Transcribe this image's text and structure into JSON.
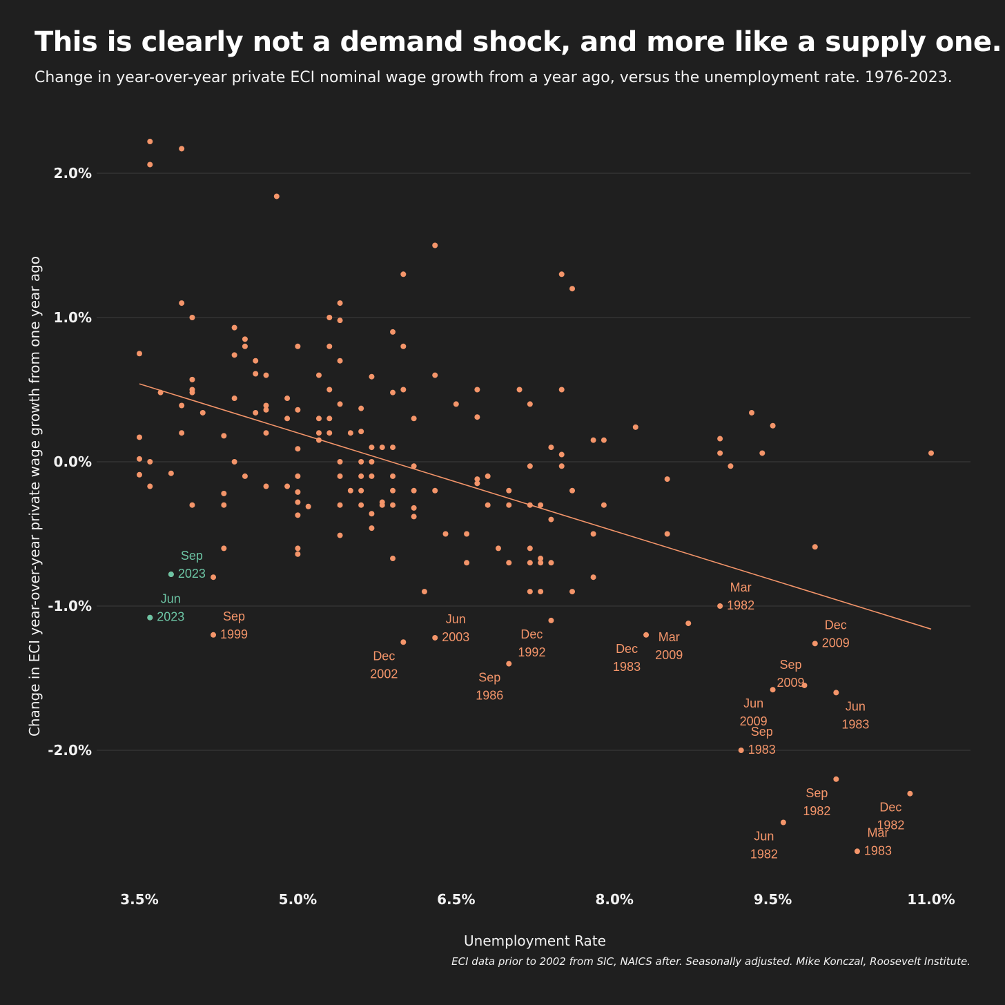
{
  "colors": {
    "background": "#1f1f1f",
    "point": "#f4956a",
    "highlight": "#6cc4a4",
    "trend": "#f4956a",
    "grid": "#3c3c3c",
    "text": "#f2f2f2"
  },
  "chart_data": {
    "type": "scatter",
    "title": "This is clearly not a demand shock, and more like a supply one.",
    "subtitle": "Change in year-over-year private ECI nominal wage growth from a year ago, versus the unemployment rate. 1976-2023.",
    "xlabel": "Unemployment Rate",
    "ylabel": "Change in ECI year-over-year private wage growth from one year ago",
    "caption": "ECI data prior to 2002 from SIC, NAICS after. Seasonally adjusted. Mike Konczal, Roosevelt Institute.",
    "xlim": [
      3.5,
      11.0
    ],
    "ylim": [
      -2.9,
      2.25
    ],
    "x_ticks": [
      3.5,
      5.0,
      6.5,
      8.0,
      9.5,
      11.0
    ],
    "x_tick_labels": [
      "3.5%",
      "5.0%",
      "6.5%",
      "8.0%",
      "9.5%",
      "11.0%"
    ],
    "y_ticks": [
      2.0,
      1.0,
      0.0,
      -1.0,
      -2.0
    ],
    "y_tick_labels": [
      "2.0%",
      "1.0%",
      "0.0%",
      "-1.0%",
      "-2.0%"
    ],
    "grid": true,
    "trend_line": {
      "x": [
        3.5,
        11.0
      ],
      "y": [
        0.54,
        -1.16
      ]
    },
    "points": [
      [
        3.6,
        2.22
      ],
      [
        3.6,
        2.06
      ],
      [
        3.9,
        2.17
      ],
      [
        3.9,
        1.1
      ],
      [
        4.0,
        1.0
      ],
      [
        4.0,
        0.57
      ],
      [
        4.0,
        0.5
      ],
      [
        4.0,
        0.48
      ],
      [
        3.9,
        0.39
      ],
      [
        3.9,
        0.2
      ],
      [
        4.1,
        0.34
      ],
      [
        3.7,
        0.48
      ],
      [
        3.5,
        0.75
      ],
      [
        3.5,
        0.17
      ],
      [
        3.5,
        0.02
      ],
      [
        3.6,
        0.0
      ],
      [
        3.5,
        -0.09
      ],
      [
        3.6,
        -0.17
      ],
      [
        3.8,
        -0.08
      ],
      [
        4.0,
        -0.3
      ],
      [
        4.3,
        0.18
      ],
      [
        4.3,
        -0.22
      ],
      [
        4.3,
        -0.3
      ],
      [
        4.3,
        -0.6
      ],
      [
        4.4,
        0.93
      ],
      [
        4.4,
        0.74
      ],
      [
        4.4,
        0.44
      ],
      [
        4.4,
        0.0
      ],
      [
        4.5,
        0.85
      ],
      [
        4.5,
        0.8
      ],
      [
        4.5,
        -0.1
      ],
      [
        4.6,
        0.7
      ],
      [
        4.6,
        0.61
      ],
      [
        4.6,
        0.34
      ],
      [
        4.7,
        0.6
      ],
      [
        4.7,
        0.39
      ],
      [
        4.7,
        0.36
      ],
      [
        4.7,
        0.2
      ],
      [
        4.7,
        -0.17
      ],
      [
        4.8,
        1.84
      ],
      [
        4.9,
        0.44
      ],
      [
        4.9,
        0.3
      ],
      [
        4.9,
        -0.17
      ],
      [
        5.0,
        0.8
      ],
      [
        5.0,
        0.36
      ],
      [
        5.0,
        0.09
      ],
      [
        5.0,
        -0.1
      ],
      [
        5.0,
        -0.21
      ],
      [
        5.0,
        -0.28
      ],
      [
        5.0,
        -0.37
      ],
      [
        5.0,
        -0.6
      ],
      [
        5.0,
        -0.64
      ],
      [
        5.1,
        -0.31
      ],
      [
        5.2,
        0.6
      ],
      [
        5.2,
        0.3
      ],
      [
        5.2,
        0.2
      ],
      [
        5.2,
        0.15
      ],
      [
        5.3,
        1.0
      ],
      [
        5.3,
        0.8
      ],
      [
        5.3,
        0.5
      ],
      [
        5.3,
        0.3
      ],
      [
        5.3,
        0.2
      ],
      [
        5.4,
        1.1
      ],
      [
        5.4,
        0.98
      ],
      [
        5.4,
        0.7
      ],
      [
        5.4,
        0.4
      ],
      [
        5.4,
        0.0
      ],
      [
        5.4,
        -0.1
      ],
      [
        5.4,
        -0.3
      ],
      [
        5.4,
        -0.51
      ],
      [
        5.5,
        0.2
      ],
      [
        5.5,
        -0.2
      ],
      [
        5.6,
        0.37
      ],
      [
        5.6,
        0.21
      ],
      [
        5.6,
        0.0
      ],
      [
        5.6,
        -0.1
      ],
      [
        5.6,
        -0.2
      ],
      [
        5.6,
        -0.3
      ],
      [
        5.7,
        0.59
      ],
      [
        5.7,
        0.1
      ],
      [
        5.7,
        0.0
      ],
      [
        5.7,
        -0.1
      ],
      [
        5.7,
        -0.36
      ],
      [
        5.7,
        -0.46
      ],
      [
        5.8,
        0.1
      ],
      [
        5.8,
        -0.28
      ],
      [
        5.8,
        -0.3
      ],
      [
        5.9,
        0.9
      ],
      [
        5.9,
        0.48
      ],
      [
        5.9,
        0.1
      ],
      [
        5.9,
        -0.1
      ],
      [
        5.9,
        -0.2
      ],
      [
        5.9,
        -0.3
      ],
      [
        5.9,
        -0.67
      ],
      [
        6.0,
        1.3
      ],
      [
        6.0,
        0.8
      ],
      [
        6.0,
        0.5
      ],
      [
        6.1,
        0.3
      ],
      [
        6.1,
        -0.03
      ],
      [
        6.1,
        -0.2
      ],
      [
        6.1,
        -0.32
      ],
      [
        6.1,
        -0.38
      ],
      [
        6.2,
        -0.9
      ],
      [
        6.3,
        1.5
      ],
      [
        6.3,
        0.6
      ],
      [
        6.3,
        -0.2
      ],
      [
        6.4,
        -0.5
      ],
      [
        6.5,
        0.4
      ],
      [
        6.6,
        -0.5
      ],
      [
        6.6,
        -0.7
      ],
      [
        6.7,
        0.5
      ],
      [
        6.7,
        0.31
      ],
      [
        6.7,
        -0.12
      ],
      [
        6.7,
        -0.15
      ],
      [
        6.8,
        -0.1
      ],
      [
        6.8,
        -0.3
      ],
      [
        6.9,
        -0.6
      ],
      [
        7.0,
        -0.2
      ],
      [
        7.0,
        -0.3
      ],
      [
        7.0,
        -0.7
      ],
      [
        7.1,
        0.5
      ],
      [
        7.2,
        0.4
      ],
      [
        7.2,
        -0.03
      ],
      [
        7.2,
        -0.3
      ],
      [
        7.2,
        -0.6
      ],
      [
        7.2,
        -0.7
      ],
      [
        7.2,
        -0.9
      ],
      [
        7.3,
        -0.3
      ],
      [
        7.3,
        -0.67
      ],
      [
        7.3,
        -0.7
      ],
      [
        7.3,
        -0.9
      ],
      [
        7.4,
        0.1
      ],
      [
        7.4,
        -0.4
      ],
      [
        7.4,
        -0.7
      ],
      [
        7.5,
        1.3
      ],
      [
        7.5,
        0.5
      ],
      [
        7.5,
        0.05
      ],
      [
        7.5,
        -0.03
      ],
      [
        7.6,
        1.2
      ],
      [
        7.6,
        -0.2
      ],
      [
        7.6,
        -0.9
      ],
      [
        7.8,
        0.15
      ],
      [
        7.8,
        -0.5
      ],
      [
        7.8,
        -0.8
      ],
      [
        7.9,
        0.15
      ],
      [
        7.9,
        -0.3
      ],
      [
        8.2,
        0.24
      ],
      [
        8.5,
        -0.12
      ],
      [
        8.5,
        -0.5
      ],
      [
        9.0,
        0.16
      ],
      [
        9.0,
        0.06
      ],
      [
        9.1,
        -0.03
      ],
      [
        9.3,
        0.34
      ],
      [
        9.4,
        0.06
      ],
      [
        9.5,
        0.25
      ],
      [
        9.9,
        -0.59
      ],
      [
        11.0,
        0.06
      ],
      [
        4.2,
        -0.8
      ],
      [
        9.0,
        -1.0
      ],
      [
        3.6,
        -1.08
      ],
      [
        3.8,
        -0.78
      ],
      [
        4.2,
        -1.2
      ],
      [
        6.0,
        -1.25
      ],
      [
        6.3,
        -1.22
      ],
      [
        7.0,
        -1.4
      ],
      [
        7.4,
        -1.1
      ],
      [
        8.3,
        -1.2
      ],
      [
        8.7,
        -1.12
      ],
      [
        9.2,
        -2.0
      ],
      [
        9.5,
        -1.58
      ],
      [
        9.8,
        -1.55
      ],
      [
        9.9,
        -1.26
      ],
      [
        10.1,
        -1.6
      ],
      [
        9.6,
        -2.5
      ],
      [
        10.1,
        -2.2
      ],
      [
        10.8,
        -2.3
      ],
      [
        10.3,
        -2.7
      ]
    ],
    "highlighted_points": [
      {
        "x": 3.8,
        "y": -0.78,
        "label": [
          "Sep",
          "2023"
        ]
      },
      {
        "x": 3.6,
        "y": -1.08,
        "label": [
          "Jun",
          "2023"
        ]
      }
    ],
    "annotations": [
      {
        "label": [
          "Sep",
          "1999"
        ],
        "x": 4.2,
        "y": -1.2,
        "anchor": "ne"
      },
      {
        "label": [
          "Dec",
          "2002"
        ],
        "x": 6.0,
        "y": -1.25,
        "anchor": "sw"
      },
      {
        "label": [
          "Jun",
          "2003"
        ],
        "x": 6.3,
        "y": -1.22,
        "anchor": "ne"
      },
      {
        "label": [
          "Sep",
          "1986"
        ],
        "x": 7.0,
        "y": -1.4,
        "anchor": "sw"
      },
      {
        "label": [
          "Dec",
          "1992"
        ],
        "x": 7.4,
        "y": -1.1,
        "anchor": "sw"
      },
      {
        "label": [
          "Dec",
          "1983"
        ],
        "x": 8.3,
        "y": -1.2,
        "anchor": "sw"
      },
      {
        "label": [
          "Mar",
          "2009"
        ],
        "x": 8.7,
        "y": -1.12,
        "anchor": "sw"
      },
      {
        "label": [
          "Mar",
          "1982"
        ],
        "x": 9.0,
        "y": -1.0,
        "anchor": "ne"
      },
      {
        "label": [
          "Dec",
          "2009"
        ],
        "x": 9.9,
        "y": -1.26,
        "anchor": "ne"
      },
      {
        "label": [
          "Sep",
          "2009"
        ],
        "x": 9.8,
        "y": -1.55,
        "anchor": "nw"
      },
      {
        "label": [
          "Jun",
          "2009"
        ],
        "x": 9.5,
        "y": -1.58,
        "anchor": "sw"
      },
      {
        "label": [
          "Jun",
          "1983"
        ],
        "x": 10.1,
        "y": -1.6,
        "anchor": "se"
      },
      {
        "label": [
          "Sep",
          "1983"
        ],
        "x": 9.2,
        "y": -2.0,
        "anchor": "ne"
      },
      {
        "label": [
          "Sep",
          "1982"
        ],
        "x": 10.1,
        "y": -2.2,
        "anchor": "sw"
      },
      {
        "label": [
          "Dec",
          "1982"
        ],
        "x": 10.8,
        "y": -2.3,
        "anchor": "sw"
      },
      {
        "label": [
          "Jun",
          "1982"
        ],
        "x": 9.6,
        "y": -2.5,
        "anchor": "sw"
      },
      {
        "label": [
          "Mar",
          "1983"
        ],
        "x": 10.3,
        "y": -2.7,
        "anchor": "ne"
      }
    ]
  }
}
